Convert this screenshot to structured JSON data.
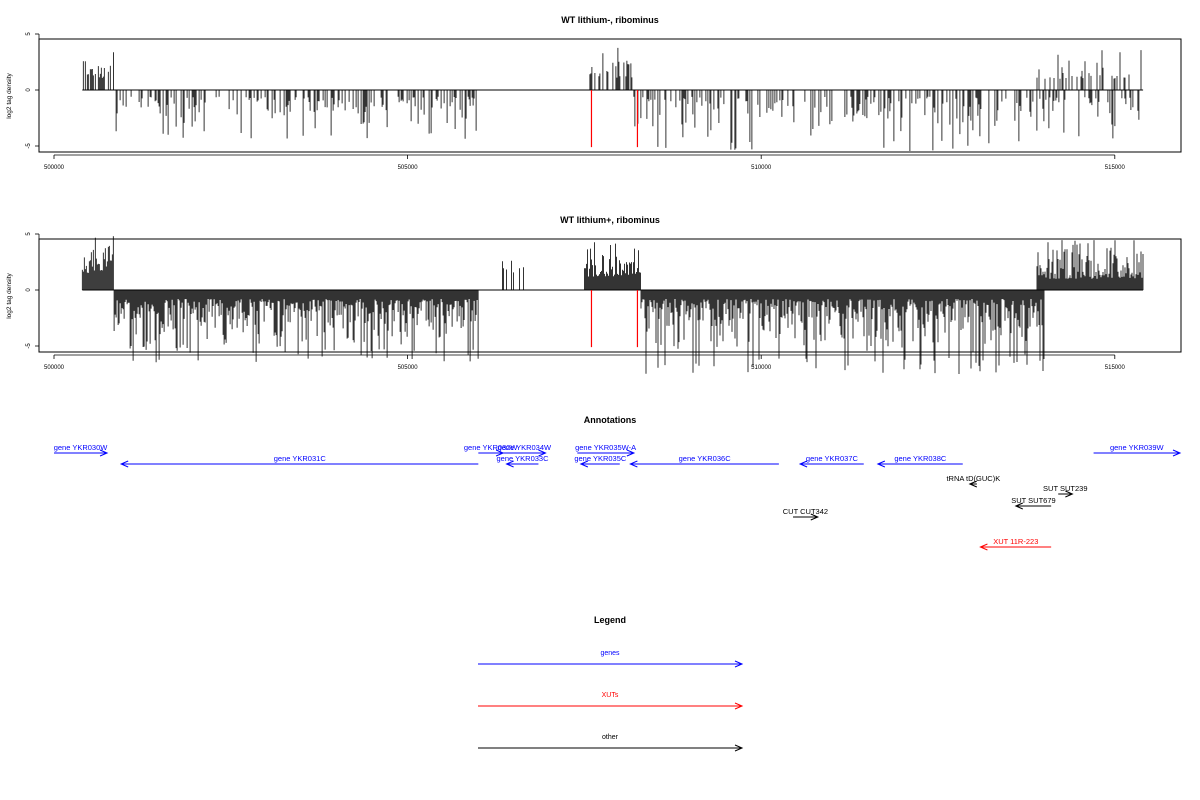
{
  "chart_data": [
    {
      "type": "bar",
      "title": "WT lithium-, ribominus",
      "ylabel": "log2 tag density",
      "xlim": [
        499800,
        515900
      ],
      "ylim": [
        -8.5,
        7
      ],
      "x_ticks": [
        500000,
        505000,
        510000,
        515000
      ],
      "x_tick_labels": [
        "500000",
        "505000",
        "510000",
        "515000"
      ],
      "y_ticks": [
        -5,
        0,
        5
      ],
      "y_tick_labels": [
        "-5",
        "0",
        "5"
      ],
      "baseline_span": [
        500400,
        515400
      ],
      "markers": [
        507600,
        508250
      ],
      "marker_color": "#ff0000",
      "series": [
        {
          "color": "#000000",
          "segments": [
            {
              "from": 500400,
              "to": 500800,
              "sign": 1,
              "min": 1.0,
              "max": 3.5,
              "density": 0.5
            },
            {
              "from": 500800,
              "to": 500850,
              "sign": 1,
              "min": 2.5,
              "max": 4.6,
              "density": 0.5
            },
            {
              "from": 500850,
              "to": 506000,
              "sign": -1,
              "min": 0.6,
              "max": 4.5,
              "density": 0.4
            },
            {
              "from": 507100,
              "to": 507120,
              "sign": 1,
              "min": 3.0,
              "max": 3.2,
              "density": 0.5
            },
            {
              "from": 507550,
              "to": 508200,
              "sign": 1,
              "min": 1.0,
              "max": 4.0,
              "density": 0.5
            },
            {
              "from": 508200,
              "to": 515400,
              "sign": -1,
              "min": 0.6,
              "max": 5.5,
              "density": 0.35
            },
            {
              "from": 513900,
              "to": 515400,
              "sign": 1,
              "min": 1.0,
              "max": 3.6,
              "density": 0.35
            }
          ]
        }
      ]
    },
    {
      "type": "bar",
      "title": "WT lithium+, ribominus",
      "ylabel": "log2 tag density",
      "xlim": [
        499800,
        515900
      ],
      "ylim": [
        -8.5,
        7
      ],
      "x_ticks": [
        500000,
        505000,
        510000,
        515000
      ],
      "x_tick_labels": [
        "500000",
        "505000",
        "510000",
        "515000"
      ],
      "y_ticks": [
        -5,
        0,
        5
      ],
      "y_tick_labels": [
        "-5",
        "0",
        "5"
      ],
      "baseline_span": [
        500400,
        515400
      ],
      "markers": [
        507600,
        508250
      ],
      "marker_color": "#ff0000",
      "series": [
        {
          "color": "#000000",
          "segments": [
            {
              "from": 500400,
              "to": 500850,
              "sign": 1,
              "min": 1.5,
              "max": 6.5,
              "density": 1.0
            },
            {
              "from": 500850,
              "to": 506000,
              "sign": -1,
              "min": 0.8,
              "max": 6.5,
              "density": 1.0
            },
            {
              "from": 506300,
              "to": 506700,
              "sign": 1,
              "min": 1.5,
              "max": 3.0,
              "density": 0.3
            },
            {
              "from": 507500,
              "to": 508300,
              "sign": 1,
              "min": 1.2,
              "max": 4.5,
              "density": 1.0
            },
            {
              "from": 508300,
              "to": 514000,
              "sign": -1,
              "min": 0.8,
              "max": 7.5,
              "density": 1.0
            },
            {
              "from": 513900,
              "to": 515400,
              "sign": 1,
              "min": 1.0,
              "max": 4.5,
              "density": 1.0
            }
          ]
        }
      ]
    }
  ],
  "annotations": {
    "title": "Annotations",
    "items": [
      {
        "label": "gene YKR030W",
        "from": 500000,
        "to": 500750,
        "strand": "+",
        "row": 0,
        "color": "#0000ff"
      },
      {
        "label": "gene YKR031C",
        "from": 500950,
        "to": 506000,
        "strand": "-",
        "row": 1,
        "color": "#0000ff"
      },
      {
        "label": "gene YKR032W",
        "from": 506000,
        "to": 506350,
        "strand": "+",
        "row": 0,
        "color": "#0000ff"
      },
      {
        "label": "gene YKR034W",
        "from": 506350,
        "to": 506950,
        "strand": "+",
        "row": 0,
        "color": "#0000ff"
      },
      {
        "label": "gene YKR033C",
        "from": 506400,
        "to": 506850,
        "strand": "-",
        "row": 1,
        "color": "#0000ff"
      },
      {
        "label": "gene YKR035W-A",
        "from": 507400,
        "to": 508200,
        "strand": "+",
        "row": 0,
        "color": "#0000ff"
      },
      {
        "label": "gene YKR035C",
        "from": 507450,
        "to": 508000,
        "strand": "-",
        "row": 1,
        "color": "#0000ff"
      },
      {
        "label": "gene YKR036C",
        "from": 508150,
        "to": 510250,
        "strand": "-",
        "row": 1,
        "color": "#0000ff"
      },
      {
        "label": "gene YKR037C",
        "from": 510550,
        "to": 511450,
        "strand": "-",
        "row": 1,
        "color": "#0000ff"
      },
      {
        "label": "gene YKR038C",
        "from": 511650,
        "to": 512850,
        "strand": "-",
        "row": 1,
        "color": "#0000ff"
      },
      {
        "label": "gene YKR039W",
        "from": 514700,
        "to": 516300,
        "strand": "+",
        "row": 0,
        "color": "#0000ff"
      },
      {
        "label": "tRNA tD(GUC)K",
        "from": 512950,
        "to": 513050,
        "strand": "-",
        "row": 2,
        "color": "#000000"
      },
      {
        "label": "SUT SUT239",
        "from": 514200,
        "to": 514400,
        "strand": "+",
        "row": 3,
        "color": "#000000"
      },
      {
        "label": "SUT SUT679",
        "from": 513600,
        "to": 514100,
        "strand": "-",
        "row": 4,
        "color": "#000000"
      },
      {
        "label": "CUT CUT342",
        "from": 510450,
        "to": 510800,
        "strand": "+",
        "row": 5,
        "color": "#000000"
      },
      {
        "label": "XUT 11R-223",
        "from": 513100,
        "to": 514100,
        "strand": "-",
        "row": 6,
        "color": "#ff0000"
      }
    ]
  },
  "legend": {
    "title": "Legend",
    "items": [
      {
        "label": "genes",
        "color": "#0000ff"
      },
      {
        "label": "XUTs",
        "color": "#ff0000"
      },
      {
        "label": "other",
        "color": "#000000"
      }
    ]
  }
}
